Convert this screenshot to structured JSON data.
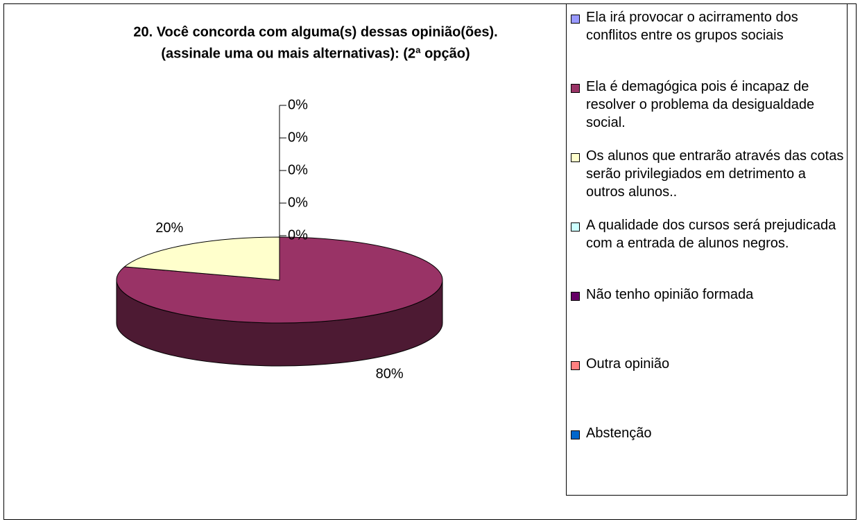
{
  "chart_data": {
    "type": "pie3d",
    "title": [
      "20. Você concorda com alguma(s) dessas opinião(ões).",
      "(assinale uma ou mais alternativas): (2ª opção)"
    ],
    "categories": [
      "Ela irá provocar o acirramento dos conflitos entre os grupos sociais",
      "Ela é demagógica pois é incapaz de resolver o problema da desigualdade social.",
      "Os alunos que entrarão através das cotas serão privilegiados em detrimento a outros alunos..",
      "A qualidade dos cursos será prejudicada com a entrada de alunos negros.",
      "Não tenho opinião formada",
      "Outra opinião",
      "Abstenção"
    ],
    "values": [
      0,
      80,
      20,
      0,
      0,
      0,
      0
    ],
    "value_labels": [
      "0%",
      "80%",
      "20%",
      "0%",
      "0%",
      "0%",
      "0%"
    ],
    "colors": [
      "#9999ff",
      "#993366",
      "#ffffcc",
      "#ccffff",
      "#660066",
      "#ff8080",
      "#0066cc"
    ],
    "legend": "right"
  }
}
